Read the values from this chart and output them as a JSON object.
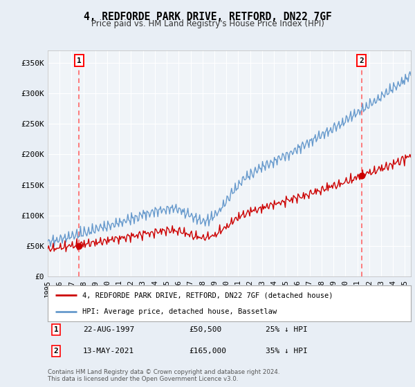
{
  "title": "4, REDFORDE PARK DRIVE, RETFORD, DN22 7GF",
  "subtitle": "Price paid vs. HM Land Registry's House Price Index (HPI)",
  "ytick_values": [
    0,
    50000,
    100000,
    150000,
    200000,
    250000,
    300000,
    350000
  ],
  "ylim": [
    0,
    370000
  ],
  "xlim_start": 1995.0,
  "xlim_end": 2025.5,
  "sale1_x": 1997.64,
  "sale1_y": 50500,
  "sale1_label": "22-AUG-1997",
  "sale1_price": "£50,500",
  "sale1_hpi": "25% ↓ HPI",
  "sale2_x": 2021.36,
  "sale2_y": 165000,
  "sale2_label": "13-MAY-2021",
  "sale2_price": "£165,000",
  "sale2_hpi": "35% ↓ HPI",
  "red_line_color": "#cc0000",
  "blue_line_color": "#6699cc",
  "dashed_line_color": "#ff6666",
  "bg_color": "#e8eef5",
  "plot_bg_color": "#f0f4f8",
  "grid_color": "#ffffff",
  "legend_label_red": "4, REDFORDE PARK DRIVE, RETFORD, DN22 7GF (detached house)",
  "legend_label_blue": "HPI: Average price, detached house, Bassetlaw",
  "footer": "Contains HM Land Registry data © Crown copyright and database right 2024.\nThis data is licensed under the Open Government Licence v3.0.",
  "xtick_years": [
    1995,
    1996,
    1997,
    1998,
    1999,
    2000,
    2001,
    2002,
    2003,
    2004,
    2005,
    2006,
    2007,
    2008,
    2009,
    2010,
    2011,
    2012,
    2013,
    2014,
    2015,
    2016,
    2017,
    2018,
    2019,
    2020,
    2021,
    2022,
    2023,
    2024,
    2025
  ]
}
